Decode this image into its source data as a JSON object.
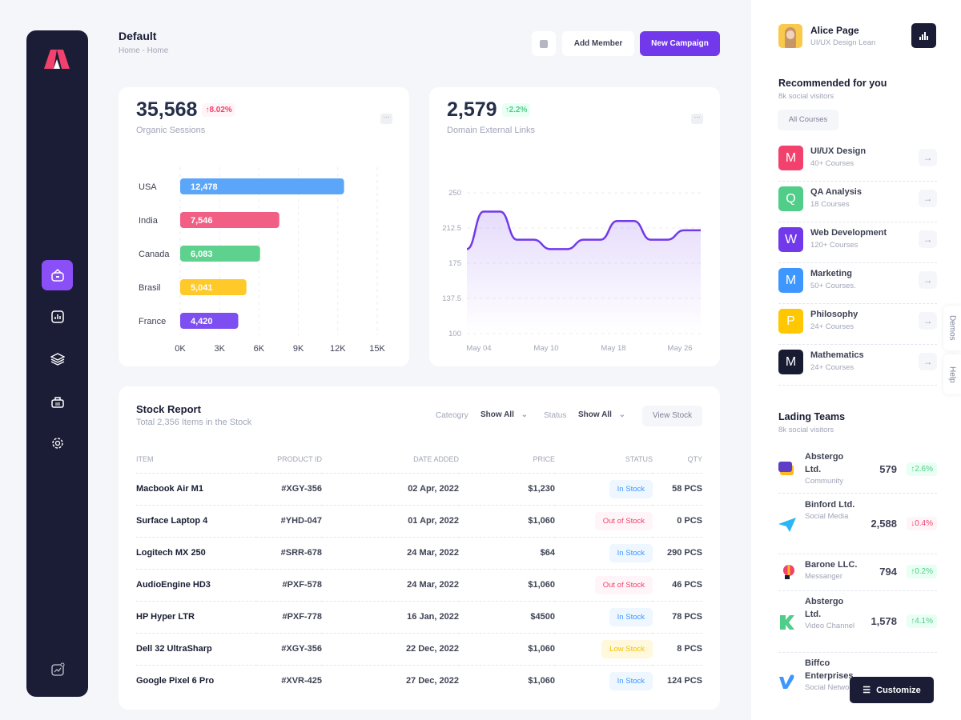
{
  "header": {
    "title": "Default",
    "breadcrumb": [
      "Home",
      "Home"
    ],
    "add_member": "Add Member",
    "new_campaign": "New Campaign"
  },
  "colors": {
    "accent": "#7239ea",
    "sidebar": "#1a1d35",
    "up": "#50cd89",
    "down": "#f1416c"
  },
  "sessions_card": {
    "value": "35,568",
    "change": "8.02%",
    "change_dir": "up",
    "label": "Organic Sessions"
  },
  "links_card": {
    "value": "2,579",
    "change": "2.2%",
    "change_dir": "up",
    "label": "Domain External Links"
  },
  "chart_data": [
    {
      "type": "bar",
      "orientation": "horizontal",
      "categories": [
        "USA",
        "India",
        "Canada",
        "Brasil",
        "France"
      ],
      "values": [
        12478,
        7546,
        6083,
        5041,
        4420
      ],
      "value_labels": [
        "12,478",
        "7,546",
        "6,083",
        "5,041",
        "4,420"
      ],
      "colors": [
        "#5ba6f8",
        "#f25f85",
        "#5fd18f",
        "#ffc929",
        "#7e4ff0"
      ],
      "xlim": [
        0,
        15000
      ],
      "xticks": [
        "0K",
        "3K",
        "6K",
        "9K",
        "12K",
        "15K"
      ],
      "grid": true
    },
    {
      "type": "area",
      "values": [
        190,
        230,
        230,
        200,
        200,
        190,
        190,
        200,
        200,
        220,
        220,
        200,
        200,
        210,
        210
      ],
      "ylim": [
        100,
        250
      ],
      "yticks": [
        "250",
        "212.5",
        "175",
        "137.5",
        "100"
      ],
      "xticks": [
        "May 04",
        "May 10",
        "May 18",
        "May 26"
      ],
      "color": "#7239ea",
      "grid": true
    }
  ],
  "stock": {
    "title": "Stock Report",
    "subtitle": "Total 2,356 Items in the Stock",
    "category_label": "Cateogry",
    "category_value": "Show All",
    "status_label": "Status",
    "status_value": "Show All",
    "view_button": "View Stock",
    "columns": [
      "ITEM",
      "PRODUCT ID",
      "DATE ADDED",
      "PRICE",
      "STATUS",
      "QTY"
    ],
    "rows": [
      [
        "Macbook Air M1",
        "#XGY-356",
        "02 Apr, 2022",
        "$1,230",
        "In Stock",
        "58 PCS"
      ],
      [
        "Surface Laptop 4",
        "#YHD-047",
        "01 Apr, 2022",
        "$1,060",
        "Out of Stock",
        "0 PCS"
      ],
      [
        "Logitech MX 250",
        "#SRR-678",
        "24 Mar, 2022",
        "$64",
        "In Stock",
        "290 PCS"
      ],
      [
        "AudioEngine HD3",
        "#PXF-578",
        "24 Mar, 2022",
        "$1,060",
        "Out of Stock",
        "46 PCS"
      ],
      [
        "HP Hyper LTR",
        "#PXF-778",
        "16 Jan, 2022",
        "$4500",
        "In Stock",
        "78 PCS"
      ],
      [
        "Dell 32 UltraSharp",
        "#XGY-356",
        "22 Dec, 2022",
        "$1,060",
        "Low Stock",
        "8 PCS"
      ],
      [
        "Google Pixel 6 Pro",
        "#XVR-425",
        "27 Dec, 2022",
        "$1,060",
        "In Stock",
        "124 PCS"
      ]
    ]
  },
  "profile": {
    "name": "Alice Page",
    "role": "UI/UX Design Lean"
  },
  "recommended": {
    "title": "Recommended for you",
    "subtitle": "8k social visitors",
    "button": "All Courses",
    "items": [
      {
        "letter": "M",
        "name": "UI/UX Design",
        "count": "40+ Courses",
        "color": "#f1416c"
      },
      {
        "letter": "Q",
        "name": "QA Analysis",
        "count": "18 Courses",
        "color": "#50cd89"
      },
      {
        "letter": "W",
        "name": "Web Development",
        "count": "120+ Courses",
        "color": "#7239ea"
      },
      {
        "letter": "M",
        "name": "Marketing",
        "count": "50+ Courses.",
        "color": "#3e97ff"
      },
      {
        "letter": "P",
        "name": "Philosophy",
        "count": "24+ Courses",
        "color": "#ffc700"
      },
      {
        "letter": "M",
        "name": "Mathematics",
        "count": "24+ Courses",
        "color": "#181c32"
      }
    ]
  },
  "teams": {
    "title": "Lading Teams",
    "subtitle": "8k social visitors",
    "items": [
      {
        "name": "Abstergo Ltd.",
        "type": "Community",
        "value": "579",
        "change": "2.6%",
        "dir": "up"
      },
      {
        "name": "Binford Ltd.",
        "type": "Social Media",
        "value": "2,588",
        "change": "0.4%",
        "dir": "down"
      },
      {
        "name": "Barone LLC.",
        "type": "Messanger",
        "value": "794",
        "change": "0.2%",
        "dir": "up"
      },
      {
        "name": "Abstergo Ltd.",
        "type": "Video Channel",
        "value": "1,578",
        "change": "4.1%",
        "dir": "up"
      },
      {
        "name": "Biffco Enterprises",
        "type": "Social Network",
        "value": "",
        "change": "",
        "dir": "up"
      }
    ]
  },
  "side_tabs": {
    "demos": "Demos",
    "help": "Help"
  },
  "customize": "Customize"
}
